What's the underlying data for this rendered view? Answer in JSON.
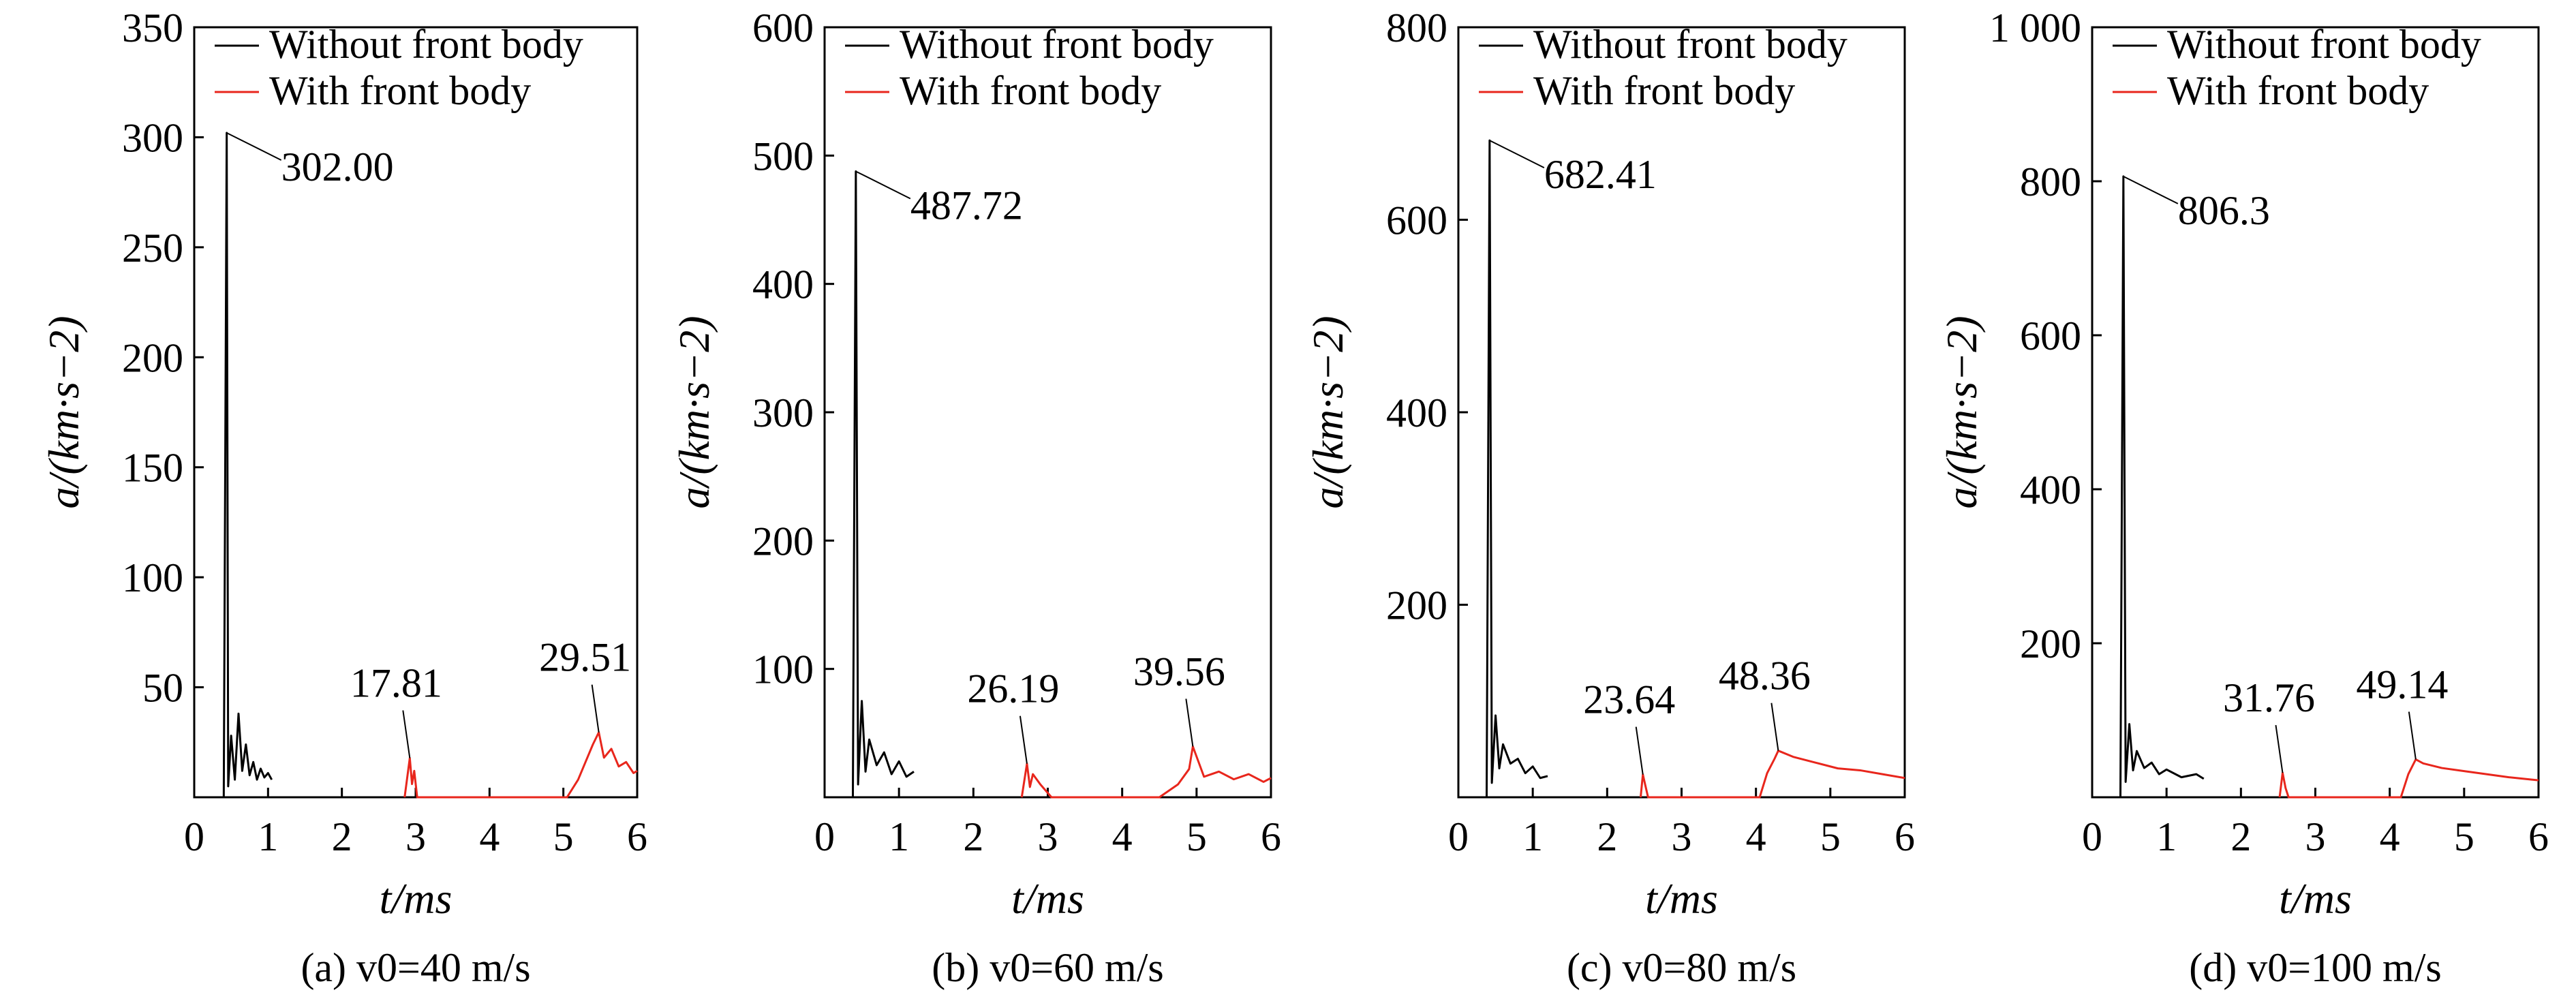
{
  "chart_data": [
    {
      "type": "line",
      "caption": "(a) v0=40 m/s",
      "xlabel": "t/ms",
      "ylabel": "a/(km·s−2)",
      "xlim": [
        0,
        6
      ],
      "ylim": [
        0,
        350
      ],
      "x_ticks": [
        "0",
        "1",
        "2",
        "3",
        "4",
        "5",
        "6"
      ],
      "y_ticks": [
        "50",
        "100",
        "150",
        "200",
        "250",
        "300",
        "350"
      ],
      "y_tick_values": [
        50,
        100,
        150,
        200,
        250,
        300,
        350
      ],
      "legend": [
        "Without front body",
        "With front body"
      ],
      "series": [
        {
          "name": "Without front body",
          "color": "#000000",
          "x": [
            0.4,
            0.44,
            0.46,
            0.5,
            0.55,
            0.6,
            0.65,
            0.7,
            0.75,
            0.8,
            0.85,
            0.9,
            0.95,
            1.0,
            1.05
          ],
          "y": [
            0,
            302.0,
            5,
            28,
            8,
            38,
            12,
            24,
            10,
            16,
            8,
            13,
            9,
            11,
            8
          ]
        },
        {
          "name": "With front body",
          "color": "#e8261c",
          "x": [
            2.85,
            2.92,
            2.95,
            2.98,
            3.02,
            5.05,
            5.2,
            5.3,
            5.4,
            5.48,
            5.55,
            5.65,
            5.75,
            5.85,
            5.95,
            6.0
          ],
          "y": [
            0,
            17.81,
            6,
            12,
            0,
            0,
            8,
            16,
            24,
            29.51,
            18,
            22,
            14,
            16,
            11,
            12
          ]
        }
      ],
      "annotations": [
        {
          "text": "302.00",
          "x": 0.44,
          "y": 302.0
        },
        {
          "text": "17.81",
          "x": 2.92,
          "y": 17.81
        },
        {
          "text": "29.51",
          "x": 5.48,
          "y": 29.51
        }
      ]
    },
    {
      "type": "line",
      "caption": "(b) v0=60 m/s",
      "xlabel": "t/ms",
      "ylabel": "a/(km·s−2)",
      "xlim": [
        0,
        6
      ],
      "ylim": [
        0,
        600
      ],
      "x_ticks": [
        "0",
        "1",
        "2",
        "3",
        "4",
        "5",
        "6"
      ],
      "y_ticks": [
        "100",
        "200",
        "300",
        "400",
        "500",
        "600"
      ],
      "y_tick_values": [
        100,
        200,
        300,
        400,
        500,
        600
      ],
      "legend": [
        "Without front body",
        "With front body"
      ],
      "series": [
        {
          "name": "Without front body",
          "color": "#000000",
          "x": [
            0.38,
            0.42,
            0.45,
            0.5,
            0.55,
            0.6,
            0.7,
            0.8,
            0.9,
            1.0,
            1.1,
            1.2
          ],
          "y": [
            0,
            487.72,
            10,
            75,
            20,
            45,
            25,
            35,
            18,
            28,
            16,
            20
          ]
        },
        {
          "name": "With front body",
          "color": "#e8261c",
          "x": [
            2.65,
            2.72,
            2.76,
            2.8,
            2.9,
            3.05,
            4.5,
            4.75,
            4.9,
            4.95,
            5.1,
            5.3,
            5.5,
            5.7,
            5.9,
            6.0
          ],
          "y": [
            0,
            26.19,
            8,
            18,
            10,
            0,
            0,
            10,
            22,
            39.56,
            16,
            20,
            14,
            18,
            12,
            15
          ]
        }
      ],
      "annotations": [
        {
          "text": "487.72",
          "x": 0.42,
          "y": 487.72
        },
        {
          "text": "26.19",
          "x": 2.72,
          "y": 26.19
        },
        {
          "text": "39.56",
          "x": 4.95,
          "y": 39.56
        }
      ]
    },
    {
      "type": "line",
      "caption": "(c) v0=80 m/s",
      "xlabel": "t/ms",
      "ylabel": "a/(km·s−2)",
      "xlim": [
        0,
        6
      ],
      "ylim": [
        0,
        800
      ],
      "x_ticks": [
        "0",
        "1",
        "2",
        "3",
        "4",
        "5",
        "6"
      ],
      "y_ticks": [
        "200",
        "400",
        "600",
        "800"
      ],
      "y_tick_values": [
        200,
        400,
        600,
        800
      ],
      "legend": [
        "Without front body",
        "With front body"
      ],
      "series": [
        {
          "name": "Without front body",
          "color": "#000000",
          "x": [
            0.38,
            0.42,
            0.45,
            0.5,
            0.55,
            0.6,
            0.7,
            0.8,
            0.9,
            1.0,
            1.1,
            1.2
          ],
          "y": [
            0,
            682.41,
            15,
            85,
            30,
            55,
            35,
            40,
            25,
            32,
            20,
            22
          ]
        },
        {
          "name": "With front body",
          "color": "#e8261c",
          "x": [
            2.45,
            2.48,
            2.52,
            2.55,
            4.05,
            4.15,
            4.25,
            4.3,
            4.5,
            4.8,
            5.1,
            5.4,
            5.7,
            6.0
          ],
          "y": [
            0,
            23.64,
            10,
            0,
            0,
            25,
            40,
            48.36,
            42,
            36,
            30,
            28,
            24,
            20
          ]
        }
      ],
      "annotations": [
        {
          "text": "682.41",
          "x": 0.42,
          "y": 682.41
        },
        {
          "text": "23.64",
          "x": 2.48,
          "y": 23.64
        },
        {
          "text": "48.36",
          "x": 4.3,
          "y": 48.36
        }
      ]
    },
    {
      "type": "line",
      "caption": "(d) v0=100 m/s",
      "xlabel": "t/ms",
      "ylabel": "a/(km·s−2)",
      "xlim": [
        0,
        6
      ],
      "ylim": [
        0,
        1000
      ],
      "x_ticks": [
        "0",
        "1",
        "2",
        "3",
        "4",
        "5",
        "6"
      ],
      "y_ticks": [
        "200",
        "400",
        "600",
        "800",
        "1 000"
      ],
      "y_tick_values": [
        200,
        400,
        600,
        800,
        1000
      ],
      "legend": [
        "Without front body",
        "With front body"
      ],
      "series": [
        {
          "name": "Without front body",
          "color": "#000000",
          "x": [
            0.38,
            0.42,
            0.45,
            0.5,
            0.55,
            0.6,
            0.7,
            0.8,
            0.9,
            1.0,
            1.2,
            1.4,
            1.5
          ],
          "y": [
            0,
            806.3,
            20,
            95,
            35,
            60,
            38,
            45,
            30,
            36,
            26,
            30,
            24
          ]
        },
        {
          "name": "With front body",
          "color": "#e8261c",
          "x": [
            2.52,
            2.56,
            2.6,
            2.64,
            4.15,
            4.25,
            4.35,
            4.45,
            4.7,
            5.0,
            5.3,
            5.6,
            6.0
          ],
          "y": [
            0,
            31.76,
            12,
            0,
            0,
            30,
            49.14,
            44,
            38,
            34,
            30,
            26,
            22
          ]
        }
      ],
      "annotations": [
        {
          "text": "806.3",
          "x": 0.42,
          "y": 806.3
        },
        {
          "text": "31.76",
          "x": 2.56,
          "y": 31.76
        },
        {
          "text": "49.14",
          "x": 4.35,
          "y": 49.14
        }
      ]
    }
  ]
}
